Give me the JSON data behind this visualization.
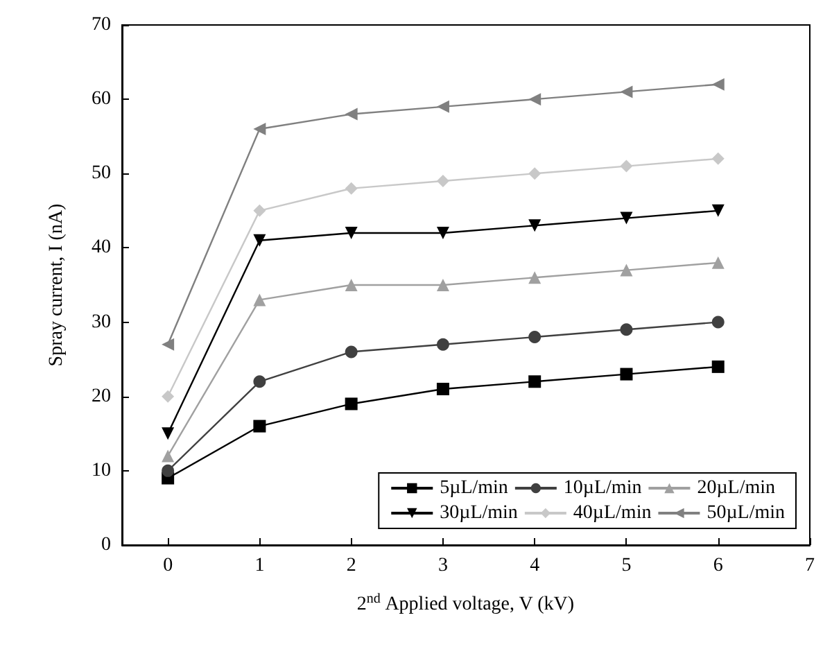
{
  "chart_data": {
    "type": "line",
    "xlabel": "2$^{nd}$ Applied voltage, V (kV)",
    "ylabel": "Spray current, I (nA)",
    "x": [
      0,
      1,
      2,
      3,
      4,
      5,
      6
    ],
    "xlim": [
      -0.5,
      7
    ],
    "xticks": [
      0,
      1,
      2,
      3,
      4,
      5,
      6,
      7
    ],
    "ylim": [
      0,
      70
    ],
    "yticks": [
      0,
      10,
      20,
      30,
      40,
      50,
      60,
      70
    ],
    "grid": false,
    "legend": "bottom right",
    "line_style": "solid",
    "series": [
      {
        "name": "5µL/min",
        "color": "#000000",
        "marker": "square",
        "values": [
          9,
          16,
          19,
          21,
          22,
          23,
          24
        ]
      },
      {
        "name": "10µL/min",
        "color": "#404040",
        "marker": "circle",
        "values": [
          10,
          22,
          26,
          27,
          28,
          29,
          30
        ]
      },
      {
        "name": "20µL/min",
        "color": "#a0a0a0",
        "marker": "triangle",
        "values": [
          12,
          33,
          35,
          35,
          36,
          37,
          38
        ]
      },
      {
        "name": "30µL/min",
        "color": "#000000",
        "marker": "triangle-down",
        "values": [
          15,
          41,
          42,
          42,
          43,
          44,
          45
        ]
      },
      {
        "name": "40µL/min",
        "color": "#c8c8c8",
        "marker": "diamond",
        "values": [
          20,
          45,
          48,
          49,
          50,
          51,
          52
        ]
      },
      {
        "name": "50µL/min",
        "color": "#808080",
        "marker": "triangle-left",
        "values": [
          27,
          56,
          58,
          59,
          60,
          61,
          62
        ]
      }
    ]
  }
}
